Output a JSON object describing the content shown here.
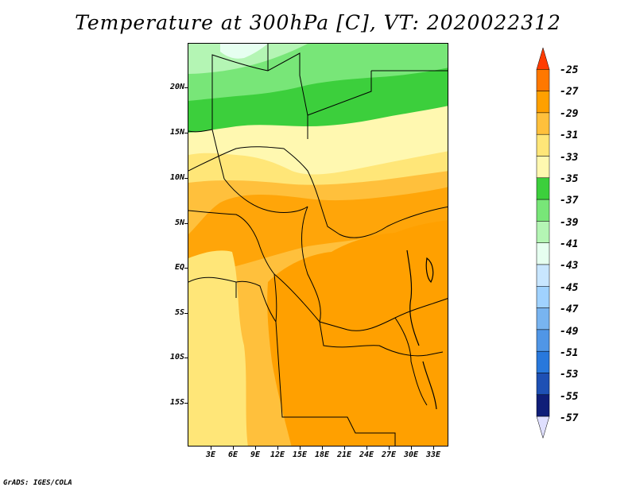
{
  "title": "Temperature at 300hPa [C], VT: 2020022312",
  "credit": "GrADS: IGES/COLA",
  "lat_labels": [
    "20N",
    "15N",
    "10N",
    "5N",
    "EQ",
    "5S",
    "10S",
    "15S"
  ],
  "lon_labels": [
    "3E",
    "6E",
    "9E",
    "12E",
    "15E",
    "18E",
    "21E",
    "24E",
    "27E",
    "30E",
    "33E"
  ],
  "colorbar": {
    "labels": [
      "-25",
      "-27",
      "-29",
      "-31",
      "-33",
      "-35",
      "-37",
      "-39",
      "-41",
      "-43",
      "-45",
      "-47",
      "-49",
      "-51",
      "-53",
      "-55",
      "-57"
    ],
    "colors": [
      "#ff3c00",
      "#ff7800",
      "#ffa000",
      "#ffc03c",
      "#ffe678",
      "#fff8b0",
      "#3ccf3c",
      "#78e678",
      "#b4f5b4",
      "#e6fff0",
      "#c8e6ff",
      "#a0d2ff",
      "#78b4f0",
      "#5096e6",
      "#2878dc",
      "#1e50b4",
      "#0f1e78",
      "#e0e0ff"
    ]
  },
  "legend_colors": {
    "warm_max": "#ffa000",
    "warm_mid": "#ffc03c",
    "warm_light": "#ffe678",
    "pale_yellow": "#fff8b0",
    "green_dark": "#3ccf3c",
    "green_mid": "#78e678",
    "green_light": "#b4f5b4",
    "cyan_pale": "#e6fff0"
  }
}
